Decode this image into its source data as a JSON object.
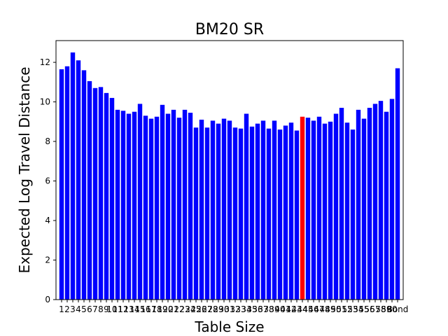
{
  "chart_data": {
    "type": "bar",
    "title": "BM20 SR",
    "xlabel": "Table Size",
    "ylabel": "Expected Log Travel Distance",
    "ylim": [
      0,
      13.1
    ],
    "yticks": [
      0,
      2,
      4,
      6,
      8,
      10,
      12
    ],
    "grid": false,
    "legend": "none",
    "bar_color": "#0000ff",
    "highlight_color": "#ff0000",
    "highlight_category": "44",
    "categories": [
      "1",
      "2",
      "3",
      "4",
      "5",
      "6",
      "7",
      "8",
      "9",
      "10",
      "11",
      "12",
      "13",
      "14",
      "15",
      "16",
      "17",
      "18",
      "19",
      "20",
      "21",
      "22",
      "23",
      "24",
      "25",
      "26",
      "27",
      "28",
      "29",
      "30",
      "31",
      "32",
      "33",
      "34",
      "35",
      "36",
      "37",
      "38",
      "39",
      "40",
      "41",
      "42",
      "43",
      "44",
      "45",
      "46",
      "47",
      "48",
      "49",
      "50",
      "51",
      "52",
      "53",
      "54",
      "55",
      "56",
      "57",
      "58",
      "59",
      "60",
      "Bond"
    ],
    "values": [
      11.65,
      11.8,
      12.5,
      12.1,
      11.6,
      11.05,
      10.7,
      10.75,
      10.45,
      10.2,
      9.6,
      9.55,
      9.4,
      9.5,
      9.9,
      9.3,
      9.15,
      9.25,
      9.85,
      9.4,
      9.6,
      9.2,
      9.6,
      9.45,
      8.7,
      9.1,
      8.7,
      9.05,
      8.9,
      9.15,
      9.05,
      8.7,
      8.65,
      9.4,
      8.75,
      8.9,
      9.05,
      8.65,
      9.05,
      8.6,
      8.8,
      8.95,
      8.55,
      9.25,
      9.2,
      9.05,
      9.25,
      8.9,
      9.0,
      9.4,
      9.7,
      8.95,
      8.6,
      9.6,
      9.15,
      9.7,
      9.9,
      10.05,
      9.5,
      10.15,
      11.7
    ]
  }
}
